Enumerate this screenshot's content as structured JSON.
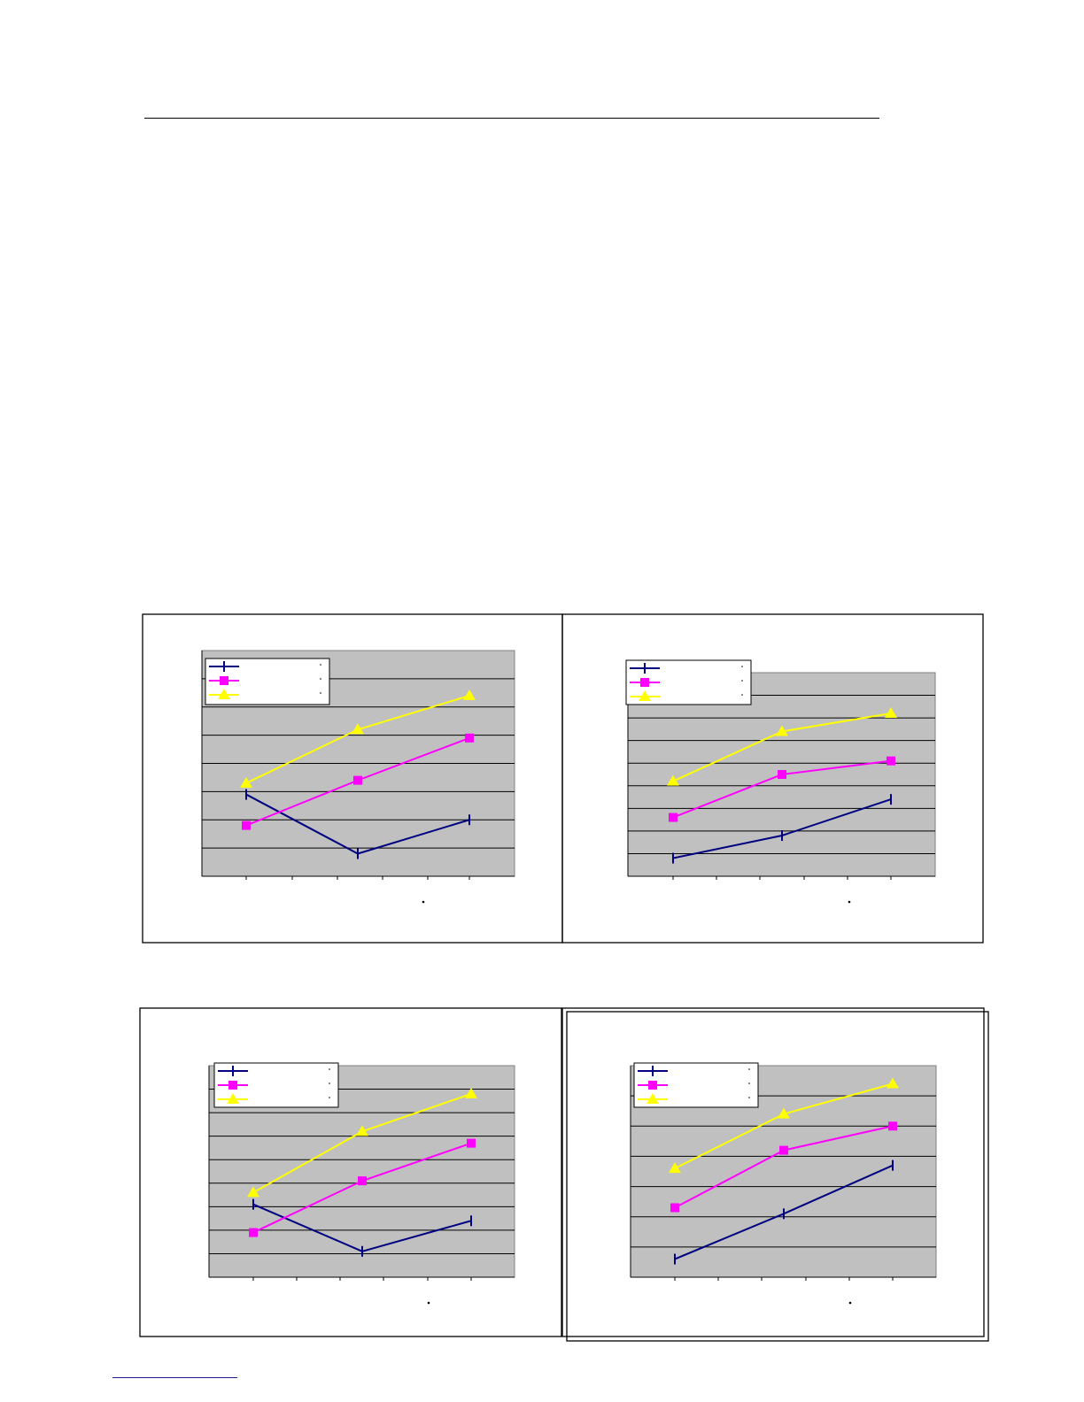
{
  "series_style": [
    {
      "color": "#000080",
      "marker": "vertical-tick"
    },
    {
      "color": "#FF00FF",
      "marker": "square"
    },
    {
      "color": "#FFFF00",
      "marker": "triangle"
    }
  ],
  "plot_background": "#C0C0C0",
  "chart_data": [
    {
      "type": "line",
      "grid": true,
      "legend": "top-left",
      "categories": [
        "",
        "",
        ""
      ],
      "ylim": [
        0,
        8
      ],
      "series": [
        {
          "values": [
            2.9,
            0.8,
            2.0
          ]
        },
        {
          "values": [
            1.8,
            3.4,
            4.9
          ]
        },
        {
          "values": [
            3.3,
            5.2,
            6.4
          ]
        }
      ]
    },
    {
      "type": "line",
      "grid": true,
      "legend": "top-left",
      "categories": [
        "",
        "",
        ""
      ],
      "ylim": [
        0,
        9
      ],
      "series": [
        {
          "values": [
            0.8,
            1.8,
            3.4
          ]
        },
        {
          "values": [
            2.6,
            4.5,
            5.1
          ]
        },
        {
          "values": [
            4.2,
            6.4,
            7.2
          ]
        }
      ]
    },
    {
      "type": "line",
      "grid": true,
      "legend": "top-left",
      "categories": [
        "",
        "",
        ""
      ],
      "ylim": [
        0,
        9
      ],
      "series": [
        {
          "values": [
            3.1,
            1.1,
            2.4
          ]
        },
        {
          "values": [
            1.9,
            4.1,
            5.7
          ]
        },
        {
          "values": [
            3.6,
            6.2,
            7.8
          ]
        }
      ]
    },
    {
      "type": "line",
      "grid": true,
      "legend": "top-left",
      "categories": [
        "",
        "",
        ""
      ],
      "ylim": [
        0,
        7
      ],
      "series": [
        {
          "values": [
            0.6,
            2.1,
            3.7
          ]
        },
        {
          "values": [
            2.3,
            4.2,
            5.0
          ]
        },
        {
          "values": [
            3.6,
            5.4,
            6.4
          ]
        }
      ]
    }
  ]
}
